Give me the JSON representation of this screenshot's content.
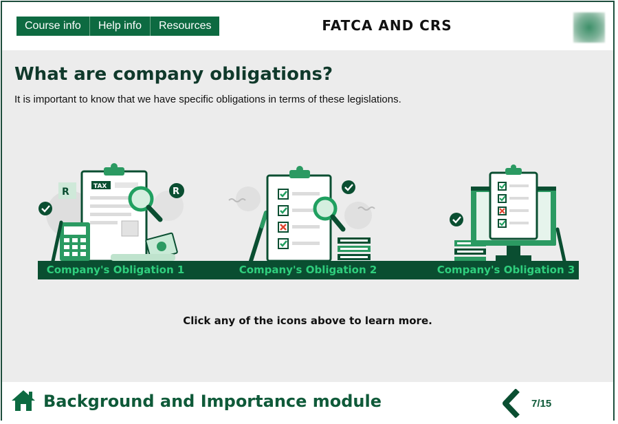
{
  "nav": {
    "items": [
      {
        "label": "Course info"
      },
      {
        "label": "Help info"
      },
      {
        "label": "Resources"
      }
    ]
  },
  "header": {
    "course_title": "FATCA AND CRS"
  },
  "main": {
    "title": "What are company obligations?",
    "intro": "It is important to know that we have specific obligations in terms of these legislations.",
    "cards": [
      {
        "label": "Company's Obligation 1",
        "badge_text": "TAX"
      },
      {
        "label": "Company's Obligation 2"
      },
      {
        "label": "Company's Obligation 3"
      }
    ],
    "instruction": "Click any of the icons above to learn more."
  },
  "footer": {
    "module_title": "Background and Importance module",
    "page_indicator": "7/15"
  },
  "icons": {
    "home": "home-icon",
    "back": "chevron-left-icon",
    "check": "check-circle-icon",
    "registered": "registered-icon"
  },
  "colors": {
    "brand_dark": "#0a4e31",
    "brand": "#0d6a41",
    "accent": "#2fce7d",
    "error": "#e0452f",
    "content_bg": "#ececec"
  }
}
